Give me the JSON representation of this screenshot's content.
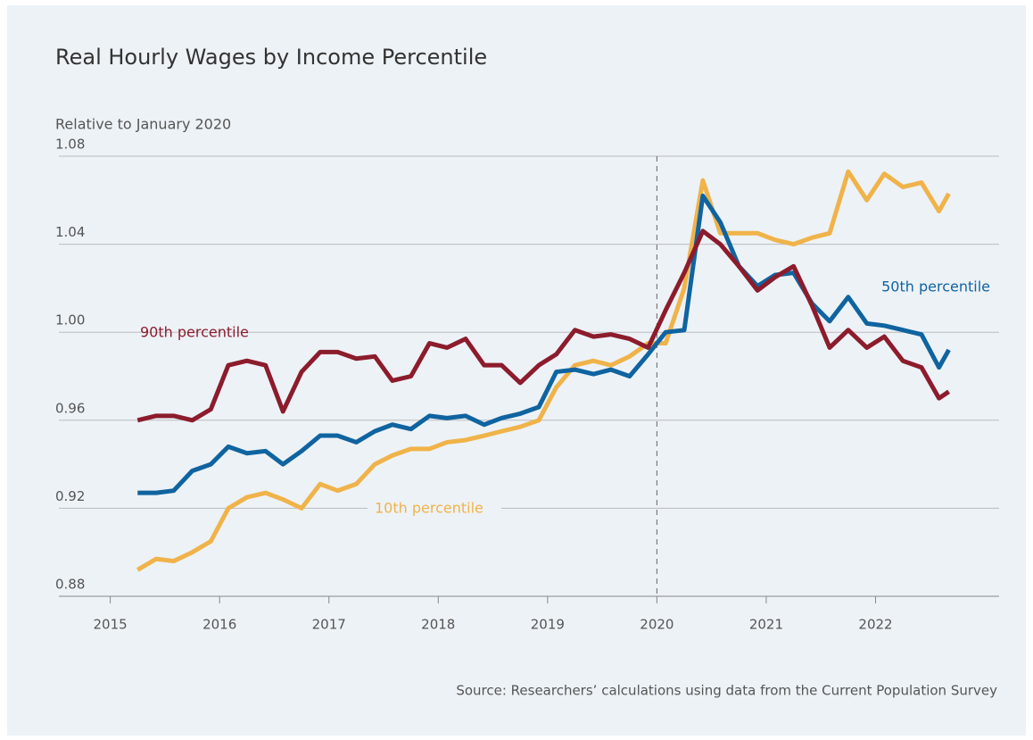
{
  "chart_data": {
    "type": "line",
    "title": "Real Hourly Wages by Income Percentile",
    "subtitle": "Relative to January 2020",
    "source": "Source: Researchers’ calculations using data from the Current Population Survey",
    "x": [
      2015.25,
      2015.42,
      2015.58,
      2015.75,
      2015.92,
      2016.08,
      2016.25,
      2016.42,
      2016.58,
      2016.75,
      2016.92,
      2017.08,
      2017.25,
      2017.42,
      2017.58,
      2017.75,
      2017.92,
      2018.08,
      2018.25,
      2018.42,
      2018.58,
      2018.75,
      2018.92,
      2019.08,
      2019.25,
      2019.42,
      2019.58,
      2019.75,
      2019.92,
      2020.08,
      2020.25,
      2020.42,
      2020.58,
      2020.75,
      2020.92,
      2021.08,
      2021.25,
      2021.42,
      2021.58,
      2021.75,
      2021.92,
      2022.08,
      2022.25,
      2022.42,
      2022.58,
      2022.67
    ],
    "series": [
      {
        "name": "90th percentile",
        "color": "#8c1c2c",
        "values": [
          0.96,
          0.962,
          0.962,
          0.96,
          0.965,
          0.985,
          0.987,
          0.985,
          0.964,
          0.982,
          0.991,
          0.991,
          0.988,
          0.989,
          0.978,
          0.98,
          0.995,
          0.993,
          0.997,
          0.985,
          0.985,
          0.977,
          0.985,
          0.99,
          1.001,
          0.998,
          0.999,
          0.997,
          0.993,
          1.01,
          1.027,
          1.046,
          1.04,
          1.03,
          1.019,
          1.025,
          1.03,
          1.012,
          0.993,
          1.001,
          0.993,
          0.998,
          0.987,
          0.984,
          0.97,
          0.973
        ]
      },
      {
        "name": "50th percentile",
        "color": "#0f64a0",
        "values": [
          0.927,
          0.927,
          0.928,
          0.937,
          0.94,
          0.948,
          0.945,
          0.946,
          0.94,
          0.946,
          0.953,
          0.953,
          0.95,
          0.955,
          0.958,
          0.956,
          0.962,
          0.961,
          0.962,
          0.958,
          0.961,
          0.963,
          0.966,
          0.982,
          0.983,
          0.981,
          0.983,
          0.98,
          0.99,
          1.0,
          1.001,
          1.062,
          1.05,
          1.03,
          1.021,
          1.026,
          1.027,
          1.013,
          1.005,
          1.016,
          1.004,
          1.003,
          1.001,
          0.999,
          0.984,
          0.992
        ]
      },
      {
        "name": "10th percentile",
        "color": "#f0b34a",
        "values": [
          0.892,
          0.897,
          0.896,
          0.9,
          0.905,
          0.92,
          0.925,
          0.927,
          0.924,
          0.92,
          0.931,
          0.928,
          0.931,
          0.94,
          0.944,
          0.947,
          0.947,
          0.95,
          0.951,
          0.953,
          0.955,
          0.957,
          0.96,
          0.975,
          0.985,
          0.987,
          0.985,
          0.989,
          0.995,
          0.995,
          1.02,
          1.069,
          1.045,
          1.045,
          1.045,
          1.042,
          1.04,
          1.043,
          1.045,
          1.073,
          1.06,
          1.072,
          1.066,
          1.068,
          1.055,
          1.063
        ]
      }
    ],
    "vline": 2020,
    "xlim": [
      2014.53,
      2023.13
    ],
    "xticks": [
      2015,
      2016,
      2017,
      2018,
      2019,
      2020,
      2021,
      2022
    ],
    "ylim": [
      0.88,
      1.08
    ],
    "yticks": [
      0.88,
      0.92,
      0.96,
      {
        "value": 1,
        "label": "1.00"
      },
      1.04,
      1.08
    ],
    "grid": true
  }
}
